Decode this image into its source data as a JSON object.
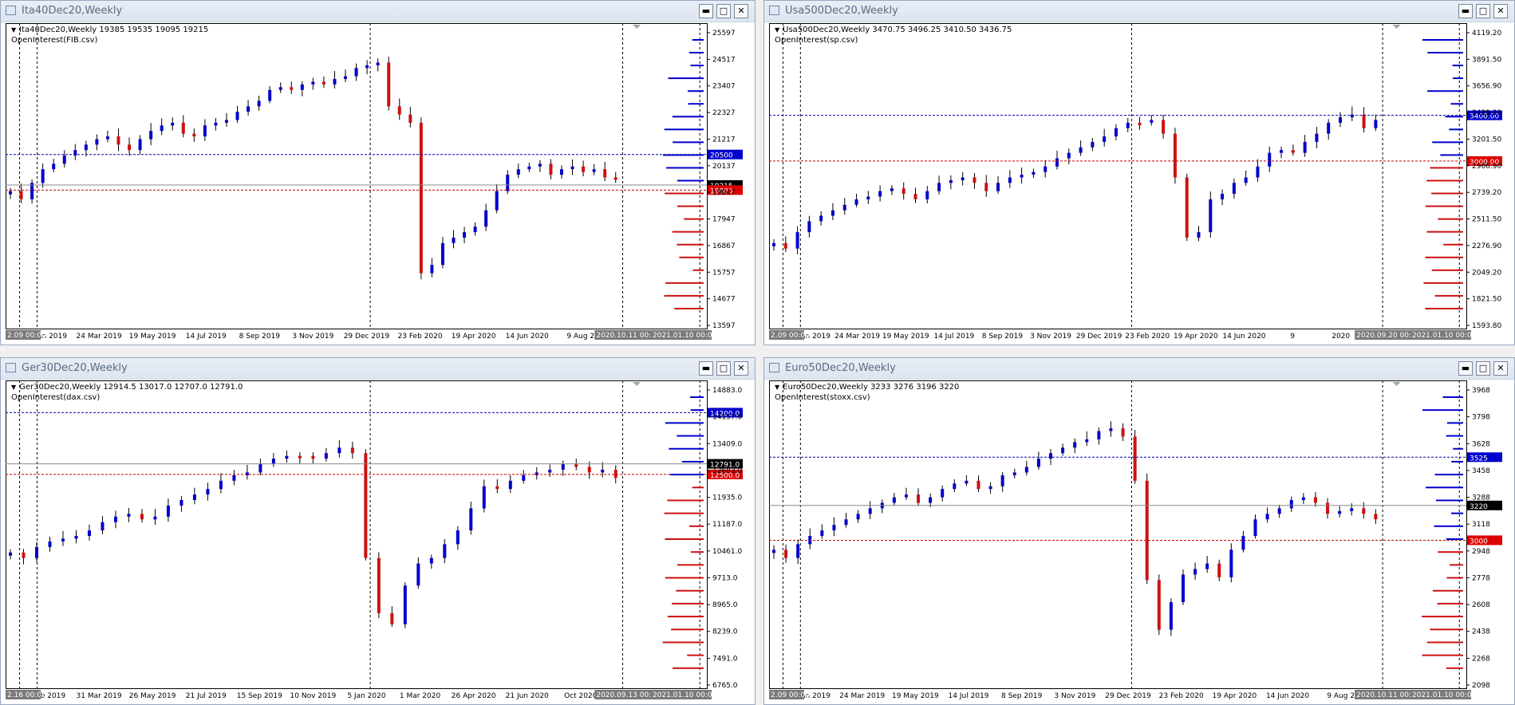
{
  "colors": {
    "bull": "#0000cc",
    "bear": "#cc1111",
    "dash_black": "#000000",
    "dash_blue": "#0000aa",
    "dash_red": "#cc0000",
    "grid_label_bg": "#7a7a7a"
  },
  "window_buttons": [
    "minimize-icon",
    "maximize-icon",
    "close-icon"
  ],
  "windows": [
    {
      "title": "Ita40Dec20,Weekly",
      "ohlc": "Ita40Dec20,Weekly  19385 19535 19095 19215",
      "indicator": "OpenInterest(FIB.csv)",
      "y_labels": [
        "25597",
        "24517",
        "23407",
        "22327",
        "21217",
        "20137",
        "19047",
        "17947",
        "16867",
        "15757",
        "14677",
        "13597"
      ],
      "x_labels": [
        "27 Jan 2019",
        "24 Mar 2019",
        "19 May 2019",
        "14 Jul 2019",
        "8 Sep 2019",
        "3 Nov 2019",
        "29 Dec 2019",
        "23 Feb 2020",
        "19 Apr 2020",
        "14 Jun 2020",
        "9 Aug 2"
      ],
      "x_start_tag": "2.09 00:00",
      "x_tag_mid": "2020.10.11 00:00",
      "x_tag_end": "2021.01.10 00:00",
      "price_tags": [
        {
          "label": "20500",
          "value": 20500,
          "color": "blue"
        },
        {
          "label": "19215",
          "value": 19215,
          "color": "black"
        },
        {
          "label": "19000",
          "value": 19000,
          "color": "red"
        }
      ],
      "ylim": [
        13300,
        25900
      ]
    },
    {
      "title": "Usa500Dec20,Weekly",
      "ohlc": "Usa500Dec20,Weekly  3470.75 3496.25 3410.50 3436.75",
      "indicator": "OpenInterest(sp.csv)",
      "y_labels": [
        "4119.20",
        "3891.50",
        "3656.90",
        "3429.20",
        "3201.50",
        "2966.90",
        "2739.20",
        "2511.50",
        "2276.90",
        "2049.20",
        "1821.50",
        "1593.80"
      ],
      "x_labels": [
        "27 Jan 2019",
        "24 Mar 2019",
        "19 May 2019",
        "14 Jul 2019",
        "8 Sep 2019",
        "3 Nov 2019",
        "29 Dec 2019",
        "23 Feb 2020",
        "19 Apr 2020",
        "14 Jun 2020",
        "9",
        "2020"
      ],
      "x_start_tag": "2.09 00:00",
      "x_tag_mid": "2020.09.20 00:00",
      "x_tag_end": "2021.01.10 00:00",
      "price_tags": [
        {
          "label": "3400.00",
          "value": 3400,
          "color": "blue"
        },
        {
          "label": "3000.00",
          "value": 3000,
          "color": "red"
        }
      ],
      "ylim": [
        1560,
        4180
      ]
    },
    {
      "title": "Ger30Dec20,Weekly",
      "ohlc": "Ger30Dec20,Weekly  12914.5 13017.0 12707.0 12791.0",
      "indicator": "OpenInterest(dax.csv)",
      "y_labels": [
        "14883.0",
        "14157.0",
        "13409.0",
        "12683.0",
        "11935.0",
        "11187.0",
        "10461.0",
        "9713.0",
        "8965.0",
        "8239.0",
        "7491.0",
        "6765.0"
      ],
      "x_labels": [
        "3 Feb 2019",
        "31 Mar 2019",
        "26 May 2019",
        "21 Jul 2019",
        "15 Sep 2019",
        "10 Nov 2019",
        "5 Jan 2020",
        "1 Mar 2020",
        "26 Apr 2020",
        "21 Jun 2020",
        "Oct 2020"
      ],
      "x_start_tag": "2.16 00:00",
      "x_tag_mid": "2020.09.13 00:00",
      "x_tag_end": "2021.01.10 00:00",
      "price_tags": [
        {
          "label": "14200.0",
          "value": 14200,
          "color": "blue"
        },
        {
          "label": "12791.0",
          "value": 12791,
          "color": "black"
        },
        {
          "label": "12500.0",
          "value": 12500,
          "color": "red"
        }
      ],
      "ylim": [
        6700,
        15000
      ]
    },
    {
      "title": "Euro50Dec20,Weekly",
      "ohlc": "Euro50Dec20,Weekly  3233 3276 3196 3220",
      "indicator": "OpenInterest(stoxx.csv)",
      "y_labels": [
        "3968",
        "3798",
        "3628",
        "3458",
        "3288",
        "3118",
        "2948",
        "2778",
        "2608",
        "2438",
        "2268",
        "2098"
      ],
      "x_labels": [
        "27 Jan 2019",
        "24 Mar 2019",
        "19 May 2019",
        "14 Jul 2019",
        "8 Sep 2019",
        "3 Nov 2019",
        "29 Dec 2019",
        "23 Feb 2020",
        "19 Apr 2020",
        "14 Jun 2020",
        "9 Aug 2"
      ],
      "x_start_tag": "2.09 00:00",
      "x_tag_mid": "2020.10.11 00:00",
      "x_tag_end": "2021.01.10 00:00",
      "price_tags": [
        {
          "label": "3525",
          "value": 3525,
          "color": "blue"
        },
        {
          "label": "3220",
          "value": 3220,
          "color": "black"
        },
        {
          "label": "3000",
          "value": 3000,
          "color": "red"
        }
      ],
      "ylim": [
        2085,
        3990
      ]
    }
  ]
}
